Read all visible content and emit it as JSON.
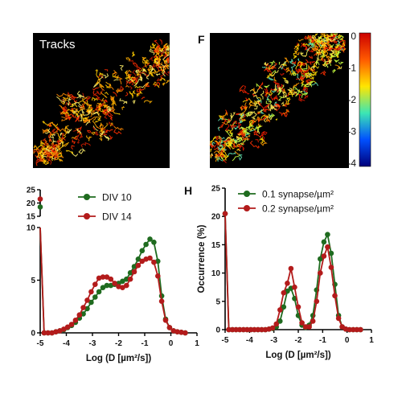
{
  "images": {
    "left": {
      "label": "Tracks",
      "icon": "microscopy-track-image"
    },
    "right": {
      "panel_letter": "F",
      "icon": "microscopy-track-image-colorcoded"
    }
  },
  "colorbar": {
    "ticks": [
      "0",
      "-1",
      "-2",
      "-3",
      "-4"
    ],
    "colors": [
      "#cc0000",
      "#ff5a00",
      "#ffe600",
      "#3ce6b4",
      "#0050ff",
      "#00007a"
    ]
  },
  "chart_data": [
    {
      "type": "line",
      "panel_letter": "",
      "xlabel": "Log (D [µm²/s])",
      "ylabel": "",
      "xlim": [
        -5,
        1
      ],
      "x_ticks": [
        "-5",
        "-4",
        "-3",
        "-2",
        "-1",
        "0",
        "1"
      ],
      "y_axis_break": true,
      "y_ticks_lower": [
        "0",
        "5",
        "10"
      ],
      "y_ticks_upper": [
        "15",
        "20",
        "25"
      ],
      "grid": false,
      "legend_position": "top-right",
      "x": [
        -5.0,
        -4.85,
        -4.7,
        -4.55,
        -4.4,
        -4.25,
        -4.1,
        -3.95,
        -3.8,
        -3.65,
        -3.5,
        -3.35,
        -3.2,
        -3.05,
        -2.9,
        -2.75,
        -2.6,
        -2.45,
        -2.3,
        -2.15,
        -2.0,
        -1.85,
        -1.7,
        -1.55,
        -1.4,
        -1.25,
        -1.1,
        -0.95,
        -0.8,
        -0.65,
        -0.5,
        -0.35,
        -0.2,
        -0.05,
        0.1,
        0.25,
        0.4,
        0.55
      ],
      "series": [
        {
          "name": "DIV 10",
          "color": "#1f6b1f",
          "values": [
            18.5,
            0,
            0,
            0,
            0.1,
            0.2,
            0.3,
            0.5,
            0.7,
            1.0,
            1.4,
            1.8,
            2.3,
            2.9,
            3.4,
            3.9,
            4.3,
            4.5,
            4.5,
            4.6,
            4.7,
            4.9,
            5.1,
            5.7,
            6.3,
            7.0,
            7.8,
            8.4,
            8.9,
            8.6,
            6.8,
            3.5,
            1.3,
            0.5,
            0.2,
            0.1,
            0.05,
            0
          ]
        },
        {
          "name": "DIV 14",
          "color": "#b31b1b",
          "values": [
            21.5,
            0,
            0,
            0,
            0.1,
            0.2,
            0.35,
            0.55,
            0.8,
            1.2,
            1.7,
            2.4,
            3.1,
            3.9,
            4.6,
            5.2,
            5.3,
            5.3,
            5.1,
            4.7,
            4.4,
            4.3,
            4.5,
            5.1,
            5.8,
            6.4,
            6.8,
            7.0,
            7.1,
            6.7,
            5.4,
            3.0,
            1.2,
            0.5,
            0.2,
            0.1,
            0.05,
            0
          ]
        }
      ]
    },
    {
      "type": "line",
      "panel_letter": "H",
      "xlabel": "Log (D [µm²/s])",
      "ylabel": "Occurrence  (%)",
      "xlim": [
        -5,
        1
      ],
      "ylim": [
        0,
        25
      ],
      "x_ticks": [
        "-5",
        "-4",
        "-3",
        "-2",
        "-1",
        "0",
        "1"
      ],
      "y_ticks": [
        "0",
        "5",
        "10",
        "15",
        "20",
        "25"
      ],
      "grid": false,
      "legend_position": "top",
      "x": [
        -5.0,
        -4.85,
        -4.7,
        -4.55,
        -4.4,
        -4.25,
        -4.1,
        -3.95,
        -3.8,
        -3.65,
        -3.5,
        -3.35,
        -3.2,
        -3.05,
        -2.9,
        -2.75,
        -2.6,
        -2.45,
        -2.3,
        -2.15,
        -2.0,
        -1.85,
        -1.7,
        -1.55,
        -1.4,
        -1.25,
        -1.1,
        -0.95,
        -0.8,
        -0.65,
        -0.5,
        -0.35,
        -0.2,
        -0.05,
        0.1,
        0.25,
        0.4,
        0.55
      ],
      "series": [
        {
          "name": "0.1 synapse/µm²",
          "color": "#1f6b1f",
          "values": [
            20.5,
            0,
            0,
            0,
            0,
            0,
            0,
            0,
            0,
            0,
            0,
            0,
            0.1,
            0.2,
            0.5,
            1.5,
            4.0,
            6.8,
            7.3,
            5.5,
            2.5,
            0.8,
            0.4,
            0.8,
            2.5,
            7.0,
            12.5,
            15.5,
            16.8,
            13.5,
            8.0,
            2.5,
            0.5,
            0.1,
            0,
            0,
            0,
            0
          ]
        },
        {
          "name": "0.2 synapse/µm²",
          "color": "#b31b1b",
          "values": [
            20.5,
            0,
            0,
            0,
            0,
            0,
            0,
            0,
            0,
            0,
            0,
            0,
            0.1,
            0.3,
            1.0,
            3.5,
            6.5,
            8.2,
            10.8,
            7.5,
            4.0,
            1.2,
            0.5,
            0.5,
            1.5,
            5.0,
            10.0,
            13.0,
            14.6,
            11.0,
            6.0,
            2.0,
            0.5,
            0.1,
            0,
            0,
            0,
            0
          ]
        }
      ]
    }
  ]
}
